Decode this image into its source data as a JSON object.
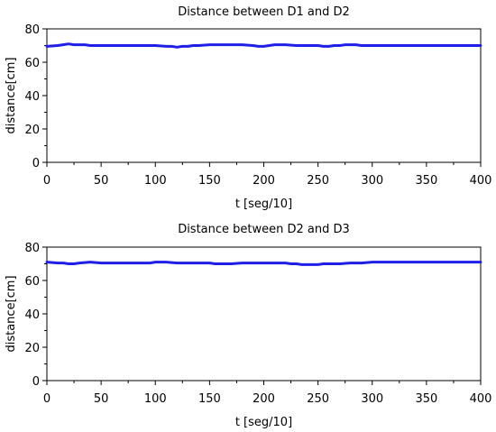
{
  "chart_data": [
    {
      "type": "line",
      "title": "Distance between D1 and D2",
      "xlabel": "t [seg/10]",
      "ylabel": "distance[cm]",
      "xlim": [
        0,
        400
      ],
      "ylim": [
        0,
        80
      ],
      "xticks": [
        0,
        50,
        100,
        150,
        200,
        250,
        300,
        350,
        400
      ],
      "yticks": [
        0,
        20,
        40,
        60,
        80
      ],
      "grid": false,
      "line_color": "#1f1fe6",
      "series": [
        {
          "x": [
            0,
            10,
            15,
            20,
            25,
            30,
            35,
            40,
            50,
            60,
            80,
            100,
            110,
            115,
            120,
            125,
            130,
            135,
            140,
            150,
            160,
            180,
            190,
            195,
            200,
            205,
            210,
            215,
            220,
            230,
            240,
            250,
            255,
            260,
            265,
            270,
            275,
            280,
            285,
            290,
            300,
            320,
            340,
            360,
            380,
            400
          ],
          "y": [
            69.5,
            70,
            70.5,
            71,
            70.5,
            70.5,
            70.5,
            70,
            70,
            70,
            70,
            70,
            69.5,
            69.5,
            69,
            69.5,
            69.5,
            70,
            70,
            70.5,
            70.5,
            70.5,
            70,
            69.5,
            69.5,
            70,
            70.5,
            70.5,
            70.5,
            70,
            70,
            70,
            69.5,
            69.5,
            70,
            70,
            70.5,
            70.5,
            70.5,
            70,
            70,
            70,
            70,
            70,
            70,
            70
          ]
        }
      ]
    },
    {
      "type": "line",
      "title": "Distance between D2 and D3",
      "xlabel": "t [seg/10]",
      "ylabel": "distance[cm]",
      "xlim": [
        0,
        400
      ],
      "ylim": [
        0,
        80
      ],
      "xticks": [
        0,
        50,
        100,
        150,
        200,
        250,
        300,
        350,
        400
      ],
      "yticks": [
        0,
        20,
        40,
        60,
        80
      ],
      "grid": false,
      "line_color": "#1f1fe6",
      "series": [
        {
          "x": [
            0,
            10,
            15,
            20,
            25,
            30,
            40,
            50,
            60,
            80,
            95,
            100,
            110,
            120,
            130,
            150,
            155,
            160,
            170,
            180,
            200,
            220,
            225,
            230,
            235,
            240,
            245,
            250,
            255,
            260,
            270,
            280,
            290,
            300,
            320,
            350,
            380,
            400
          ],
          "y": [
            71,
            70.5,
            70.5,
            70,
            70,
            70.5,
            71,
            70.5,
            70.5,
            70.5,
            70.5,
            71,
            71,
            70.5,
            70.5,
            70.5,
            70,
            70,
            70,
            70.5,
            70.5,
            70.5,
            70,
            70,
            69.5,
            69.5,
            69.5,
            69.5,
            70,
            70,
            70,
            70.5,
            70.5,
            71,
            71,
            71,
            71,
            71
          ]
        }
      ]
    }
  ]
}
